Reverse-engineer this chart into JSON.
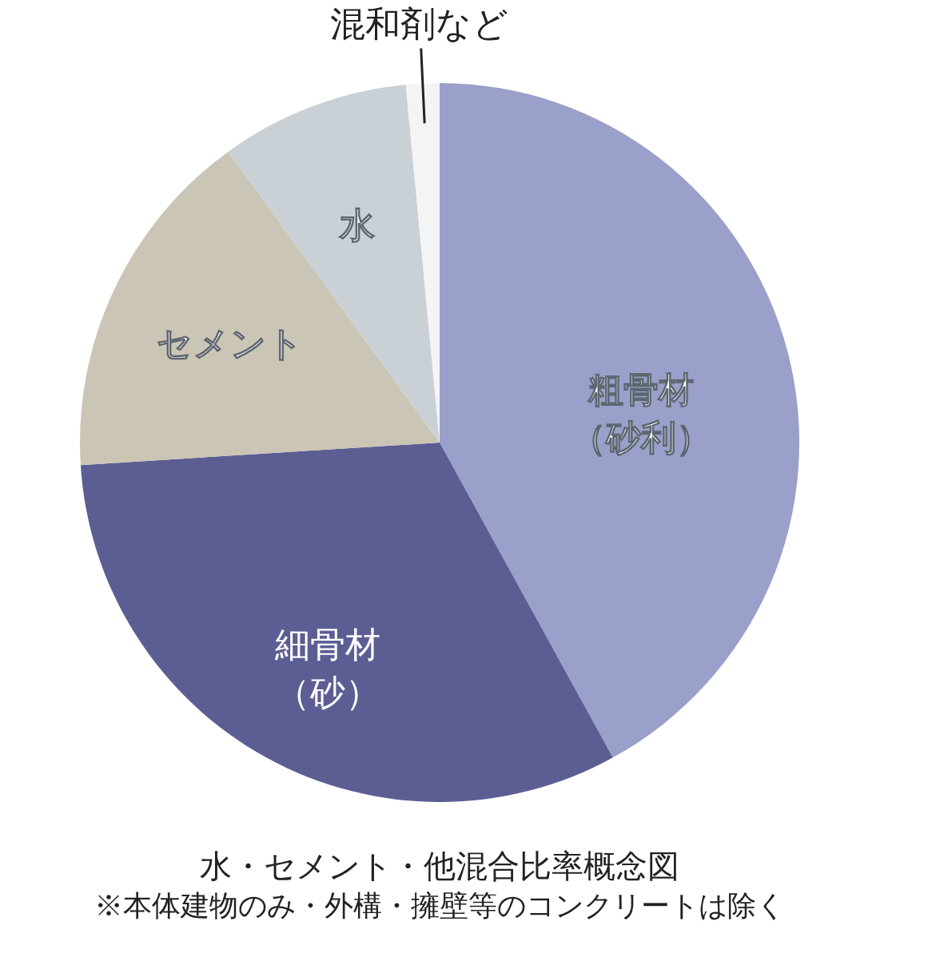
{
  "chart_data": {
    "type": "pie",
    "title": "水・セメント・他混合比率概念図",
    "annotations": [
      "※本体建物のみ・外構・擁壁等のコンクリートは除く"
    ],
    "categories": [
      "粗骨材（砂利）",
      "細骨材（砂）",
      "セメント",
      "水",
      "混和剤など"
    ],
    "values": [
      42,
      32,
      16,
      8.5,
      1.5
    ],
    "colors": [
      "#9aa0c9",
      "#5c5e93",
      "#cbc5b5",
      "#c9d0d6",
      "#f4f4f4"
    ]
  }
}
